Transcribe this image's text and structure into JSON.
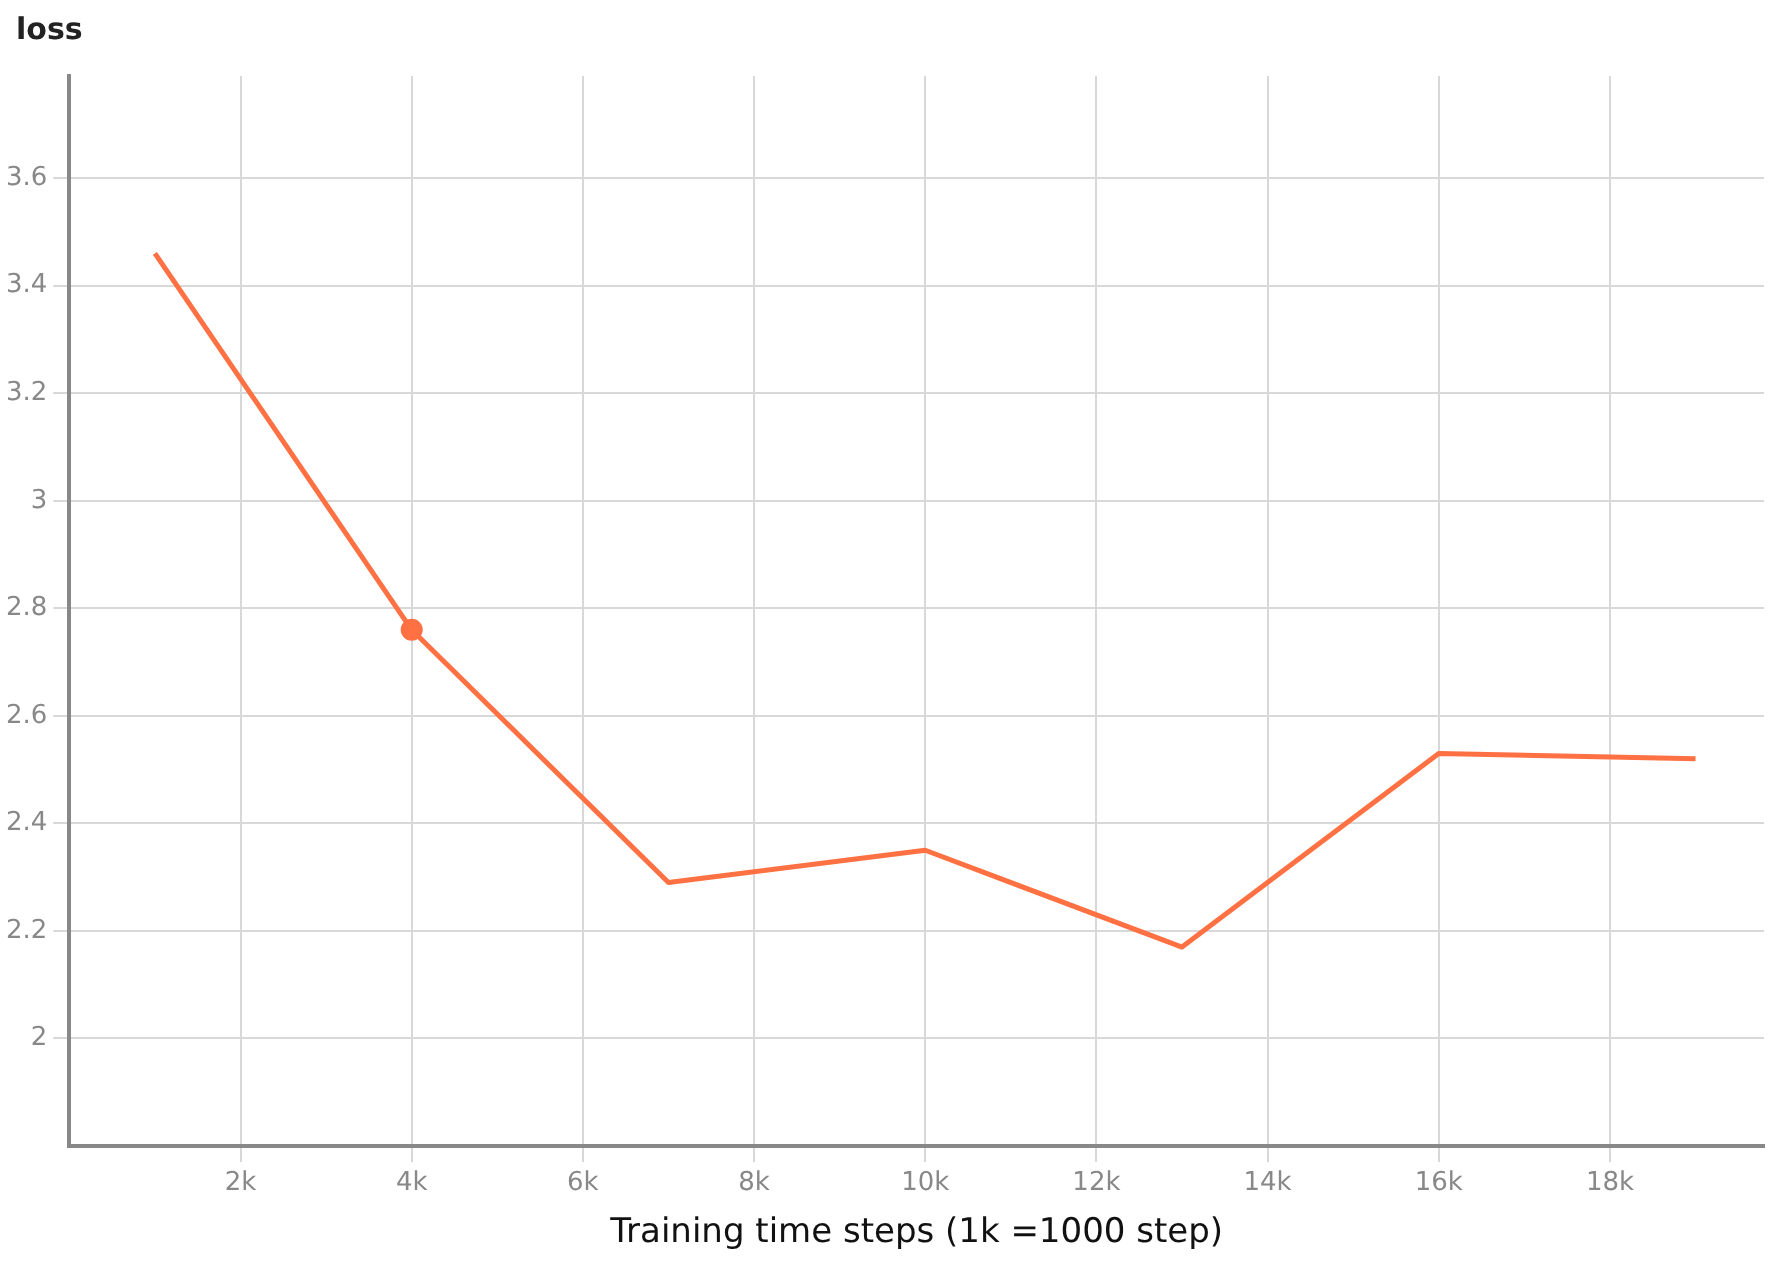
{
  "chart_data": {
    "type": "line",
    "ylabel": "loss",
    "xlabel": "Training time steps (1k =1000 step)",
    "x": [
      1000,
      4000,
      7000,
      10000,
      13000,
      16000,
      19000
    ],
    "series": [
      {
        "color": "#ff7043",
        "values": [
          3.46,
          2.76,
          2.29,
          2.35,
          2.17,
          2.53,
          2.52
        ]
      },
      {
        "type": "scatter",
        "color": "#ff7043",
        "x": [
          4000
        ],
        "values": [
          2.76
        ],
        "marker": "circle"
      }
    ],
    "xlim": [
      0,
      19800
    ],
    "ylim": [
      1.8,
      3.79
    ],
    "xticks": [
      {
        "value": 2000,
        "label": "2k"
      },
      {
        "value": 4000,
        "label": "4k"
      },
      {
        "value": 6000,
        "label": "6k"
      },
      {
        "value": 8000,
        "label": "8k"
      },
      {
        "value": 10000,
        "label": "10k"
      },
      {
        "value": 12000,
        "label": "12k"
      },
      {
        "value": 14000,
        "label": "14k"
      },
      {
        "value": 16000,
        "label": "16k"
      },
      {
        "value": 18000,
        "label": "18k"
      }
    ],
    "yticks": [
      2,
      2.2,
      2.4,
      2.6,
      2.8,
      3,
      3.2,
      3.4,
      3.6
    ],
    "grid": true,
    "legend": false,
    "marker": "none",
    "line_style": "solid"
  }
}
